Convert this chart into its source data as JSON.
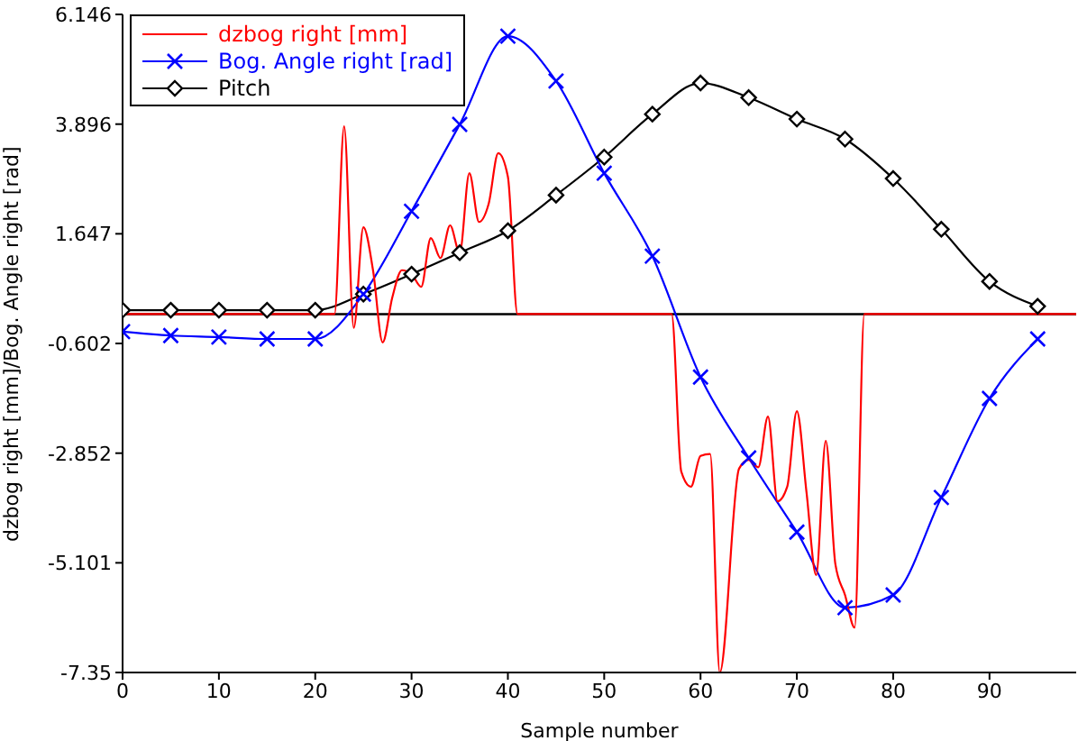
{
  "chart_data": {
    "type": "line",
    "xlabel": "Sample number",
    "ylabel": "dzbog right [mm]/Bog. Angle right [rad]",
    "xlim": [
      0,
      99
    ],
    "xticks": [
      0,
      10,
      20,
      30,
      40,
      50,
      60,
      70,
      80,
      90
    ],
    "ylim": [
      -7.35,
      6.146
    ],
    "yticks": [
      -7.35,
      -5.101,
      -2.852,
      -0.602,
      1.647,
      3.896,
      6.146
    ],
    "legend": "top left",
    "grid": false,
    "ref_lines": [
      {
        "axis": "y",
        "value": 0,
        "color": "#000000"
      }
    ],
    "series": [
      {
        "name": "dzbog right [mm]",
        "color": "#ff0000",
        "marker": "none",
        "x": [
          0,
          22,
          23,
          24,
          25,
          26,
          27,
          28,
          29,
          30,
          31,
          32,
          33,
          34,
          35,
          36,
          37,
          38,
          39,
          40,
          41,
          57,
          58,
          59,
          60,
          61,
          62,
          64,
          65,
          66,
          67,
          68,
          69,
          70,
          71,
          72,
          73,
          74,
          75,
          76,
          77,
          99
        ],
        "values": [
          0,
          0,
          3.85,
          -0.28,
          1.78,
          0.9,
          -0.58,
          0.34,
          0.9,
          0.82,
          0.56,
          1.56,
          1.15,
          1.82,
          1.26,
          2.89,
          1.89,
          2.26,
          3.3,
          2.82,
          0,
          0,
          -3.23,
          -3.54,
          -2.91,
          -2.87,
          -7.35,
          -3.17,
          -2.99,
          -3.14,
          -2.1,
          -3.84,
          -3.54,
          -1.99,
          -3.65,
          -5.35,
          -2.6,
          -5.13,
          -5.76,
          -6.43,
          0,
          0
        ]
      },
      {
        "name": "Bog. Angle right [rad]",
        "color": "#0000ff",
        "marker": "cross",
        "x": [
          0,
          5,
          10,
          15,
          20,
          25,
          30,
          35,
          40,
          45,
          50,
          55,
          60,
          65,
          70,
          75,
          80,
          85,
          90,
          95
        ],
        "values": [
          -0.36,
          -0.44,
          -0.47,
          -0.51,
          -0.51,
          0.41,
          2.11,
          3.89,
          5.7,
          4.78,
          2.89,
          1.19,
          -1.29,
          -2.95,
          -4.47,
          -6.02,
          -5.76,
          -3.76,
          -1.73,
          -0.51
        ]
      },
      {
        "name": "Pitch",
        "color": "#000000",
        "marker": "diamond",
        "x": [
          0,
          5,
          10,
          15,
          20,
          25,
          30,
          35,
          40,
          45,
          50,
          55,
          60,
          65,
          70,
          75,
          80,
          85,
          90,
          95
        ],
        "values": [
          0.08,
          0.08,
          0.08,
          0.08,
          0.08,
          0.41,
          0.82,
          1.26,
          1.71,
          2.44,
          3.22,
          4.1,
          4.74,
          4.44,
          4.0,
          3.59,
          2.78,
          1.74,
          0.67,
          0.16
        ]
      }
    ]
  }
}
